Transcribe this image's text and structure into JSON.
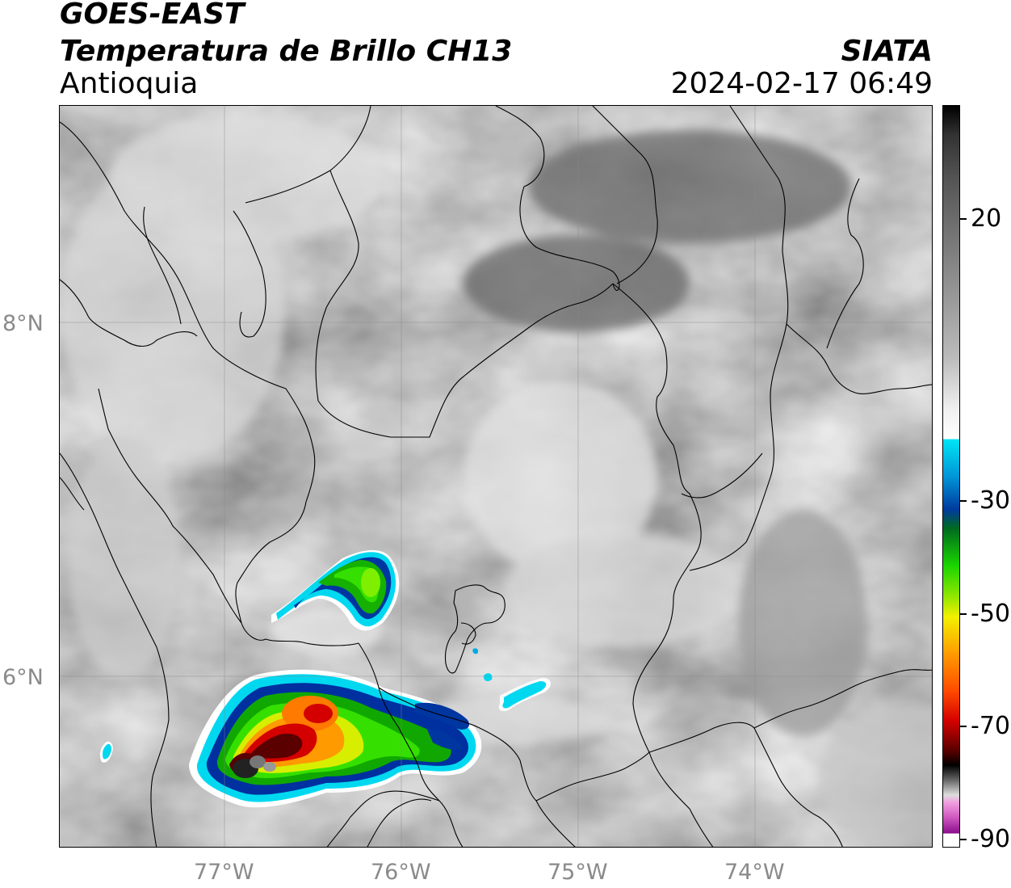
{
  "header": {
    "title_line1": "GOES-EAST",
    "title_line2": "Temperatura de Brillo CH13",
    "region": "Antioquia",
    "organization": "SIATA",
    "datetime": "2024-02-17 06:49"
  },
  "map": {
    "latitude_labels": [
      "8°N",
      "6°N"
    ],
    "longitude_labels": [
      "77°W",
      "76°W",
      "75°W",
      "74°W"
    ]
  },
  "colorbar": {
    "tick_labels": [
      "20",
      "-30",
      "-50",
      "-70",
      "-90"
    ],
    "colors": {
      "warm_gray_dark": "#555555",
      "warm_gray_light": "#f0f0f0",
      "cyan": "#00e5f5",
      "blue": "#003a9e",
      "green": "#19d400",
      "yellow": "#f3f000",
      "orange": "#ff9a00",
      "red": "#d40000",
      "dark_red": "#5a0000",
      "black": "#000000",
      "magenta": "#d05ac0",
      "purple": "#8a0c8c"
    }
  }
}
